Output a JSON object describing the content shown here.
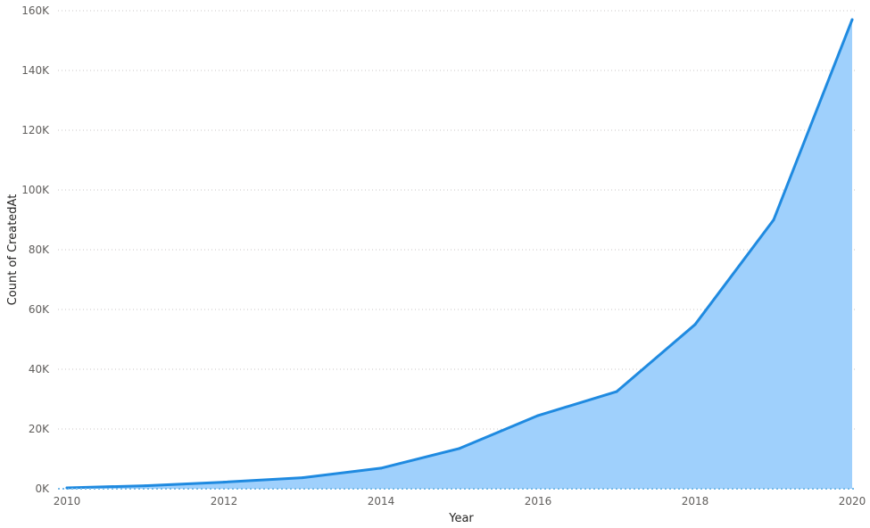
{
  "chart_data": {
    "type": "area",
    "title": "",
    "xlabel": "Year",
    "ylabel": "Count of CreatedAt",
    "x": [
      2010,
      2011,
      2012,
      2013,
      2014,
      2015,
      2016,
      2017,
      2018,
      2019,
      2020
    ],
    "series": [
      {
        "values": [
          300,
          1000,
          2200,
          3700,
          6900,
          13500,
          24500,
          32500,
          55000,
          90000,
          157000
        ]
      }
    ],
    "x_ticks": [
      "2010",
      "2012",
      "2014",
      "2016",
      "2018",
      "2020"
    ],
    "x_tick_values": [
      2010,
      2012,
      2014,
      2016,
      2018,
      2020
    ],
    "y_ticks": [
      "0K",
      "20K",
      "40K",
      "60K",
      "80K",
      "100K",
      "120K",
      "140K",
      "160K"
    ],
    "y_tick_values": [
      0,
      20000,
      40000,
      60000,
      80000,
      100000,
      120000,
      140000,
      160000
    ],
    "xlim": [
      2010,
      2020
    ],
    "ylim": [
      0,
      160000
    ],
    "grid": true,
    "line_color": "#1f8ae0",
    "fill_color": "#9fd0fc"
  }
}
